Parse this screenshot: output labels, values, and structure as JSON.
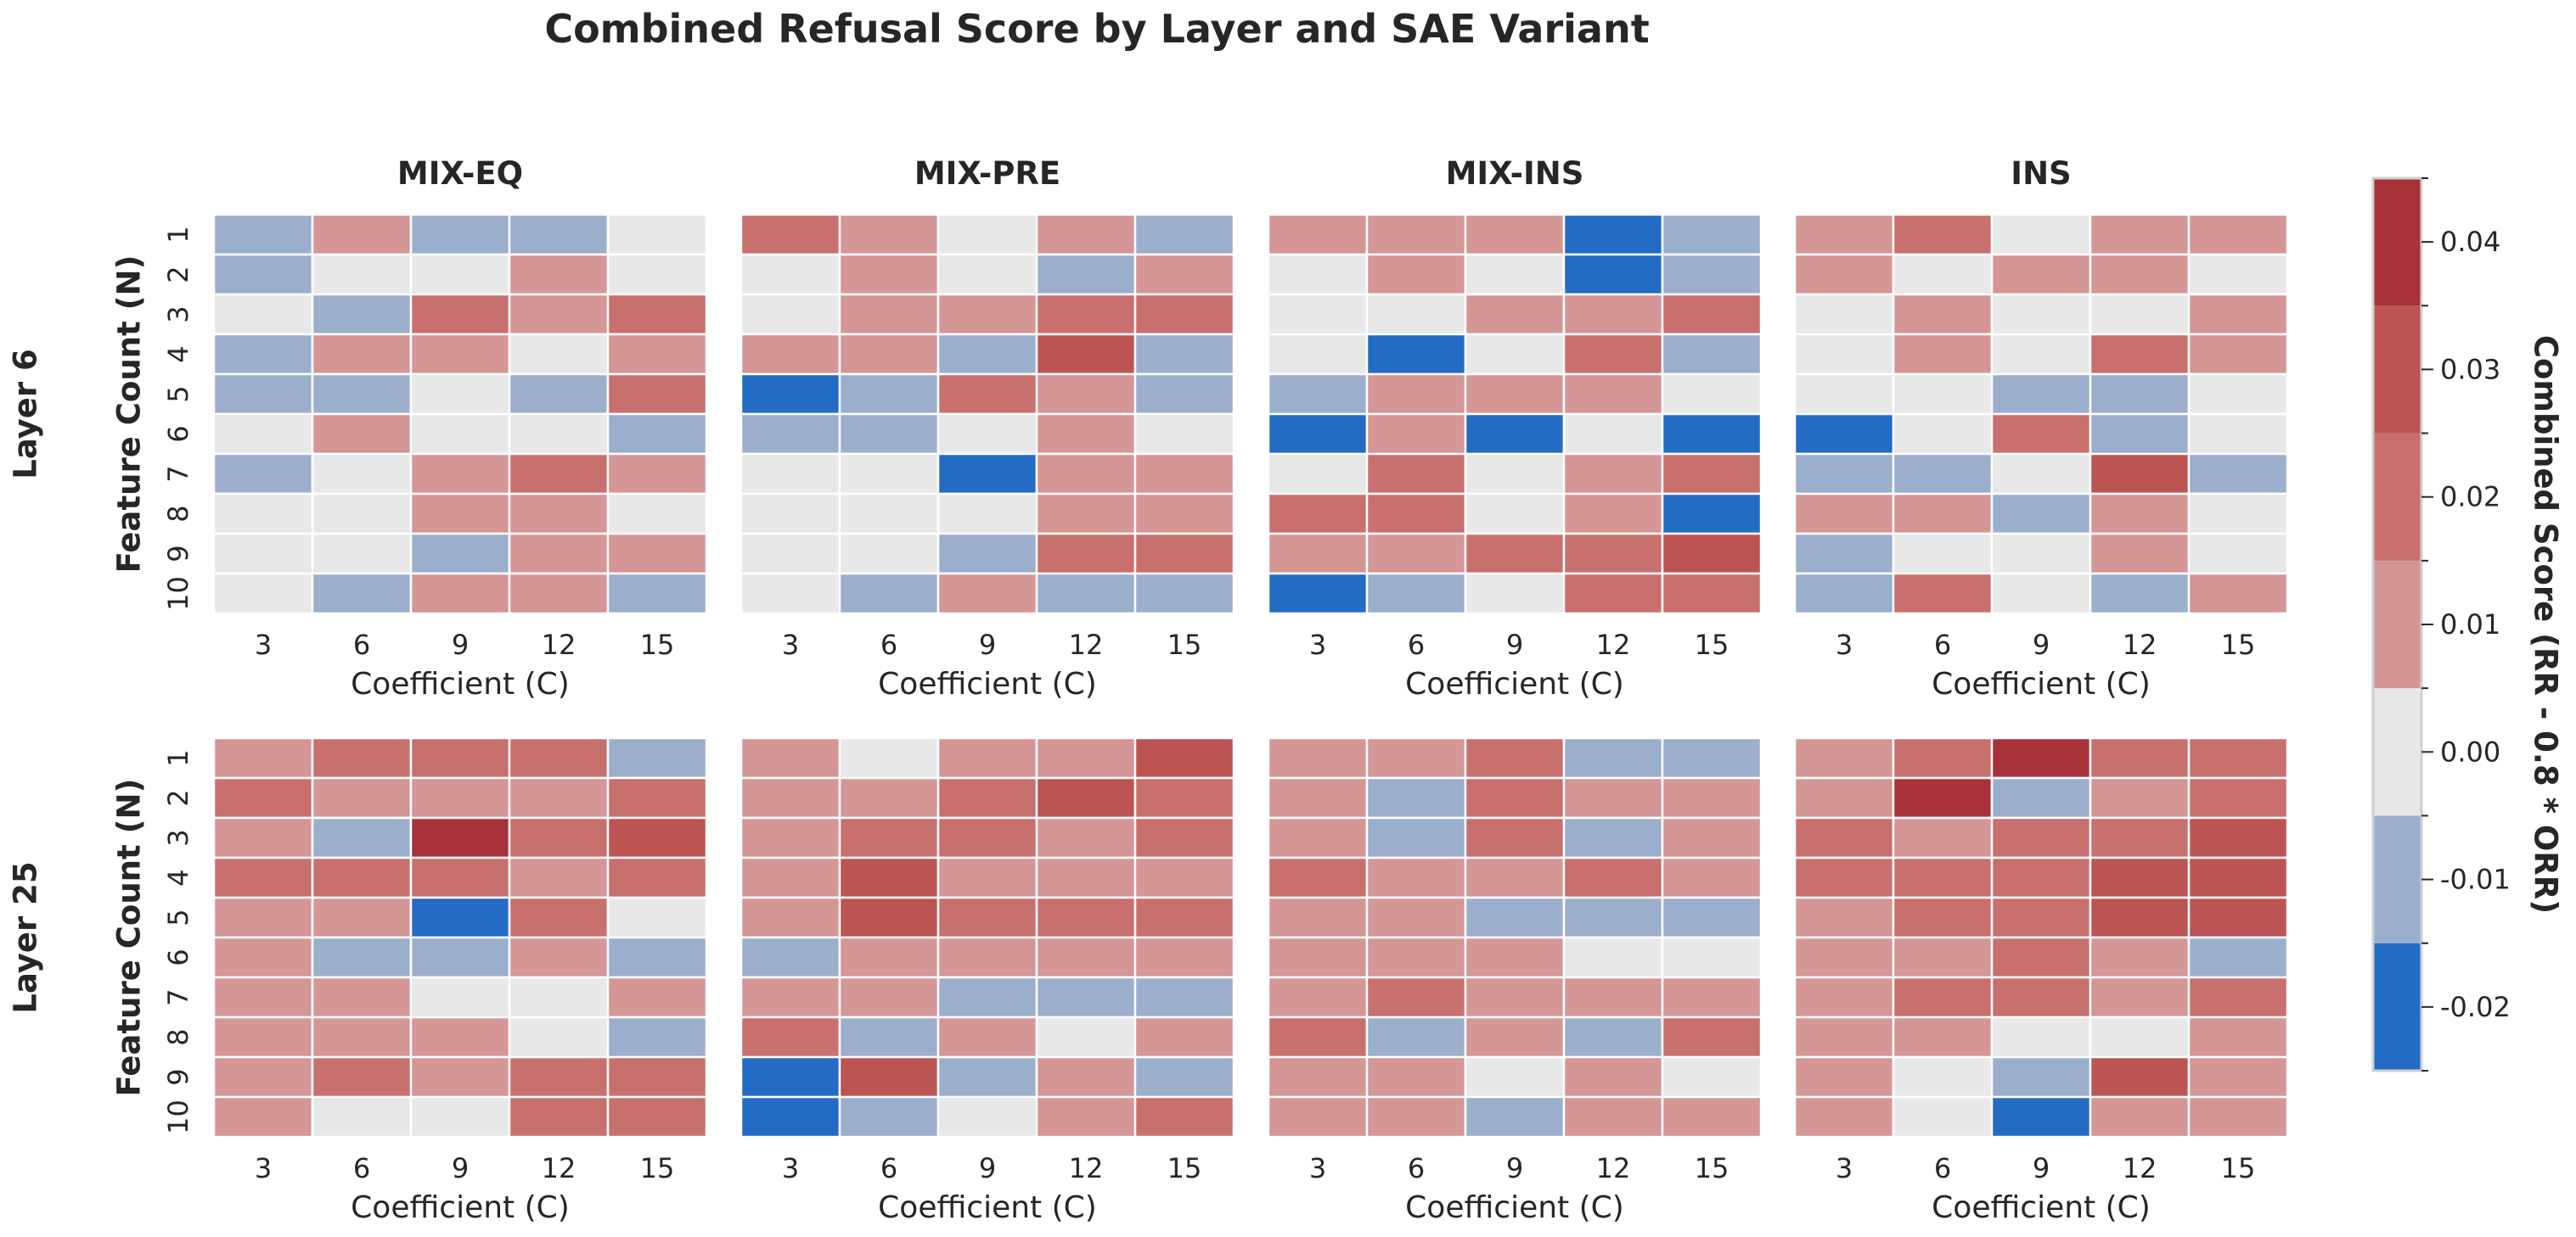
{
  "chart_data": {
    "type": "heatmap",
    "title": "Combined Refusal Score by Layer and SAE Variant",
    "variants": [
      "MIX-EQ",
      "MIX-PRE",
      "MIX-INS",
      "INS"
    ],
    "layers": [
      "Layer 6",
      "Layer 25"
    ],
    "x_label": "Coefficient (C)",
    "y_label": "Feature Count (N)",
    "x_ticks": [
      "3",
      "6",
      "9",
      "12",
      "15"
    ],
    "y_ticks": [
      "1",
      "2",
      "3",
      "4",
      "5",
      "6",
      "7",
      "8",
      "9",
      "10"
    ],
    "colorbar": {
      "label": "Combined Score (RR - 0.8 * ORR)",
      "vmin": -0.025,
      "vmax": 0.045,
      "ticks": [
        -0.02,
        -0.01,
        0.0,
        0.01,
        0.02,
        0.03,
        0.04
      ],
      "tick_labels": [
        "-0.02",
        "-0.01",
        "0.00",
        "0.01",
        "0.02",
        "0.03",
        "0.04"
      ],
      "bins": [
        {
          "from": -0.025,
          "to": -0.015,
          "color": "#246bc3"
        },
        {
          "from": -0.015,
          "to": -0.005,
          "color": "#9bafcd"
        },
        {
          "from": -0.005,
          "to": 0.005,
          "color": "#e8e8e8"
        },
        {
          "from": 0.005,
          "to": 0.015,
          "color": "#d59696"
        },
        {
          "from": 0.015,
          "to": 0.025,
          "color": "#c8706e"
        },
        {
          "from": 0.025,
          "to": 0.035,
          "color": "#bc5453"
        },
        {
          "from": 0.035,
          "to": 0.045,
          "color": "#a8323a"
        }
      ]
    },
    "panels": [
      {
        "layer": "Layer 6",
        "variant": "MIX-EQ",
        "values": [
          [
            -0.01,
            0.01,
            -0.01,
            -0.01,
            0.0
          ],
          [
            -0.01,
            0.0,
            0.0,
            0.01,
            0.0
          ],
          [
            0.0,
            -0.01,
            0.02,
            0.01,
            0.02
          ],
          [
            -0.01,
            0.01,
            0.01,
            0.0,
            0.01
          ],
          [
            -0.01,
            -0.01,
            0.0,
            -0.01,
            0.02
          ],
          [
            0.0,
            0.01,
            0.0,
            0.0,
            -0.01
          ],
          [
            -0.01,
            0.0,
            0.01,
            0.02,
            0.01
          ],
          [
            0.0,
            0.0,
            0.01,
            0.01,
            0.0
          ],
          [
            0.0,
            0.0,
            -0.01,
            0.01,
            0.01
          ],
          [
            0.0,
            -0.01,
            0.01,
            0.01,
            -0.01
          ]
        ]
      },
      {
        "layer": "Layer 6",
        "variant": "MIX-PRE",
        "values": [
          [
            0.02,
            0.01,
            0.0,
            0.01,
            -0.01
          ],
          [
            0.0,
            0.01,
            0.0,
            -0.01,
            0.01
          ],
          [
            0.0,
            0.01,
            0.01,
            0.02,
            0.02
          ],
          [
            0.01,
            0.01,
            -0.01,
            0.03,
            -0.01
          ],
          [
            -0.02,
            -0.01,
            0.02,
            0.01,
            -0.01
          ],
          [
            -0.01,
            -0.01,
            0.0,
            0.01,
            0.0
          ],
          [
            0.0,
            0.0,
            -0.02,
            0.01,
            0.01
          ],
          [
            0.0,
            0.0,
            0.0,
            0.01,
            0.01
          ],
          [
            0.0,
            0.0,
            -0.01,
            0.02,
            0.02
          ],
          [
            0.0,
            -0.01,
            0.01,
            -0.01,
            -0.01
          ]
        ]
      },
      {
        "layer": "Layer 6",
        "variant": "MIX-INS",
        "values": [
          [
            0.01,
            0.01,
            0.01,
            -0.02,
            -0.01
          ],
          [
            0.0,
            0.01,
            0.0,
            -0.02,
            -0.01
          ],
          [
            0.0,
            0.0,
            0.01,
            0.01,
            0.02
          ],
          [
            0.0,
            -0.02,
            0.0,
            0.02,
            -0.01
          ],
          [
            -0.01,
            0.01,
            0.01,
            0.01,
            0.0
          ],
          [
            -0.02,
            0.01,
            -0.02,
            0.0,
            -0.02
          ],
          [
            0.0,
            0.02,
            0.0,
            0.01,
            0.02
          ],
          [
            0.02,
            0.02,
            0.0,
            0.01,
            -0.02
          ],
          [
            0.01,
            0.01,
            0.02,
            0.02,
            0.03
          ],
          [
            -0.02,
            -0.01,
            0.0,
            0.02,
            0.02
          ]
        ]
      },
      {
        "layer": "Layer 6",
        "variant": "INS",
        "values": [
          [
            0.01,
            0.02,
            0.0,
            0.01,
            0.01
          ],
          [
            0.01,
            0.0,
            0.01,
            0.01,
            0.0
          ],
          [
            0.0,
            0.01,
            0.0,
            0.0,
            0.01
          ],
          [
            0.0,
            0.01,
            0.0,
            0.02,
            0.01
          ],
          [
            0.0,
            0.0,
            -0.01,
            -0.01,
            0.0
          ],
          [
            -0.02,
            0.0,
            0.02,
            -0.01,
            0.0
          ],
          [
            -0.01,
            -0.01,
            0.0,
            0.03,
            -0.01
          ],
          [
            0.01,
            0.01,
            -0.01,
            0.01,
            0.0
          ],
          [
            -0.01,
            0.0,
            0.0,
            0.01,
            0.0
          ],
          [
            -0.01,
            0.02,
            0.0,
            -0.01,
            0.01
          ]
        ]
      },
      {
        "layer": "Layer 25",
        "variant": "MIX-EQ",
        "values": [
          [
            0.01,
            0.02,
            0.02,
            0.02,
            -0.01
          ],
          [
            0.02,
            0.01,
            0.01,
            0.01,
            0.02
          ],
          [
            0.01,
            -0.01,
            0.04,
            0.02,
            0.03
          ],
          [
            0.02,
            0.02,
            0.02,
            0.01,
            0.02
          ],
          [
            0.01,
            0.01,
            -0.02,
            0.02,
            0.0
          ],
          [
            0.01,
            -0.01,
            -0.01,
            0.01,
            -0.01
          ],
          [
            0.01,
            0.01,
            0.0,
            0.0,
            0.01
          ],
          [
            0.01,
            0.01,
            0.01,
            0.0,
            -0.01
          ],
          [
            0.01,
            0.02,
            0.01,
            0.02,
            0.02
          ],
          [
            0.01,
            0.0,
            0.0,
            0.02,
            0.02
          ]
        ]
      },
      {
        "layer": "Layer 25",
        "variant": "MIX-PRE",
        "values": [
          [
            0.01,
            0.0,
            0.01,
            0.01,
            0.03
          ],
          [
            0.01,
            0.01,
            0.02,
            0.03,
            0.02
          ],
          [
            0.01,
            0.02,
            0.02,
            0.01,
            0.02
          ],
          [
            0.01,
            0.03,
            0.01,
            0.01,
            0.01
          ],
          [
            0.01,
            0.03,
            0.02,
            0.02,
            0.02
          ],
          [
            -0.01,
            0.01,
            0.01,
            0.01,
            0.01
          ],
          [
            0.01,
            0.01,
            -0.01,
            -0.01,
            -0.01
          ],
          [
            0.02,
            -0.01,
            0.01,
            0.0,
            0.01
          ],
          [
            -0.02,
            0.03,
            -0.01,
            0.01,
            -0.01
          ],
          [
            -0.02,
            -0.01,
            0.0,
            0.01,
            0.02
          ]
        ]
      },
      {
        "layer": "Layer 25",
        "variant": "MIX-INS",
        "values": [
          [
            0.01,
            0.01,
            0.02,
            -0.01,
            -0.01
          ],
          [
            0.01,
            -0.01,
            0.02,
            0.01,
            0.01
          ],
          [
            0.01,
            -0.01,
            0.02,
            -0.01,
            0.01
          ],
          [
            0.02,
            0.01,
            0.01,
            0.02,
            0.01
          ],
          [
            0.01,
            0.01,
            -0.01,
            -0.01,
            -0.01
          ],
          [
            0.01,
            0.01,
            0.01,
            0.0,
            0.0
          ],
          [
            0.01,
            0.02,
            0.01,
            0.01,
            0.01
          ],
          [
            0.02,
            -0.01,
            0.01,
            -0.01,
            0.02
          ],
          [
            0.01,
            0.01,
            0.0,
            0.01,
            0.0
          ],
          [
            0.01,
            0.01,
            -0.01,
            0.01,
            0.01
          ]
        ]
      },
      {
        "layer": "Layer 25",
        "variant": "INS",
        "values": [
          [
            0.01,
            0.02,
            0.04,
            0.02,
            0.02
          ],
          [
            0.01,
            0.04,
            -0.01,
            0.01,
            0.02
          ],
          [
            0.02,
            0.01,
            0.02,
            0.02,
            0.03
          ],
          [
            0.02,
            0.02,
            0.02,
            0.03,
            0.03
          ],
          [
            0.01,
            0.02,
            0.02,
            0.03,
            0.03
          ],
          [
            0.01,
            0.01,
            0.02,
            0.01,
            -0.01
          ],
          [
            0.01,
            0.02,
            0.02,
            0.01,
            0.02
          ],
          [
            0.01,
            0.01,
            0.0,
            0.0,
            0.01
          ],
          [
            0.01,
            0.0,
            -0.01,
            0.03,
            0.01
          ],
          [
            0.01,
            0.0,
            -0.02,
            0.01,
            0.01
          ]
        ]
      }
    ]
  }
}
